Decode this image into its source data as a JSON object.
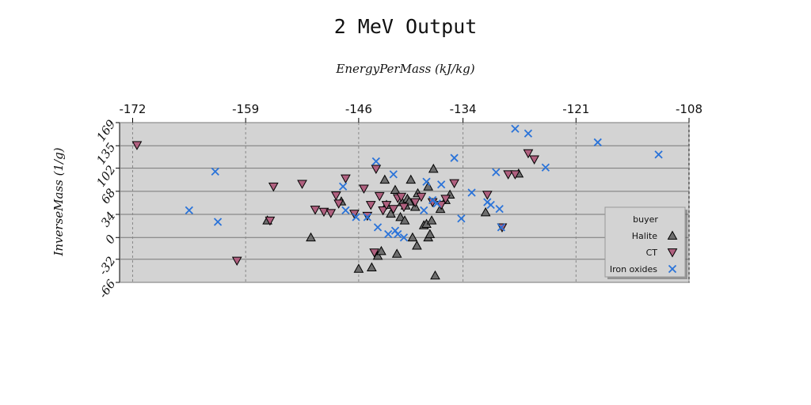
{
  "chart_data": {
    "type": "scatter",
    "title": "2 MeV Output",
    "xlabel": "EnergyPerMass (kJ/kg)",
    "ylabel": "InverseMass (1/g)",
    "xlim": [
      -173.5,
      -108
    ],
    "ylim": [
      -66,
      169
    ],
    "xticks": [
      -172,
      -159,
      -146,
      -134,
      -121,
      -108
    ],
    "yticks": [
      169,
      135,
      102,
      68,
      34,
      0,
      -32,
      -66
    ],
    "x_axis_position": "top",
    "grid": true,
    "legend": {
      "title": "buyer",
      "position": "lower-right"
    },
    "series": [
      {
        "name": "Halite",
        "marker": "triangle-up",
        "color": "#6e6e6e",
        "points": [
          [
            -156.5,
            25
          ],
          [
            -151.5,
            0
          ],
          [
            -148,
            53
          ],
          [
            -146,
            -46
          ],
          [
            -144.5,
            -44
          ],
          [
            -143.8,
            -27
          ],
          [
            -143.4,
            -20
          ],
          [
            -143,
            85
          ],
          [
            -142.8,
            48
          ],
          [
            -142.3,
            35
          ],
          [
            -141.8,
            70
          ],
          [
            -141.6,
            -24
          ],
          [
            -141.2,
            30
          ],
          [
            -141,
            52
          ],
          [
            -140.7,
            25
          ],
          [
            -140.6,
            47
          ],
          [
            -140.4,
            57
          ],
          [
            -140.2,
            53
          ],
          [
            -140,
            85
          ],
          [
            -139.8,
            0
          ],
          [
            -139.5,
            45
          ],
          [
            -139.3,
            -12
          ],
          [
            -139.2,
            65
          ],
          [
            -138.5,
            18
          ],
          [
            -138.2,
            20
          ],
          [
            -138,
            75
          ],
          [
            -138,
            0
          ],
          [
            -137.8,
            5
          ],
          [
            -137.6,
            25
          ],
          [
            -137.4,
            101
          ],
          [
            -137.2,
            -56
          ],
          [
            -136.6,
            42
          ],
          [
            -136,
            55
          ],
          [
            -135.5,
            63
          ],
          [
            -131.4,
            37
          ],
          [
            -127.6,
            94
          ]
        ]
      },
      {
        "name": "CT",
        "marker": "triangle-down",
        "color": "#b0607f",
        "points": [
          [
            -171.5,
            136
          ],
          [
            -160,
            -34
          ],
          [
            -156.2,
            25
          ],
          [
            -155.8,
            75
          ],
          [
            -152.5,
            79
          ],
          [
            -151,
            41
          ],
          [
            -150,
            38
          ],
          [
            -149.2,
            36
          ],
          [
            -148.6,
            62
          ],
          [
            -148.3,
            50
          ],
          [
            -147.5,
            87
          ],
          [
            -146.5,
            35
          ],
          [
            -145.4,
            72
          ],
          [
            -145,
            32
          ],
          [
            -144.6,
            48
          ],
          [
            -144.2,
            -22
          ],
          [
            -144,
            101
          ],
          [
            -143.6,
            61
          ],
          [
            -143.2,
            40
          ],
          [
            -142.8,
            48
          ],
          [
            -142,
            42
          ],
          [
            -141.5,
            58
          ],
          [
            -141.1,
            60
          ],
          [
            -140.8,
            45
          ],
          [
            -139.5,
            52
          ],
          [
            -138.8,
            60
          ],
          [
            -137.5,
            52
          ],
          [
            -136.5,
            48
          ],
          [
            -136,
            57
          ],
          [
            -135,
            80
          ],
          [
            -131.2,
            63
          ],
          [
            -129.5,
            15
          ],
          [
            -128.8,
            93
          ],
          [
            -128,
            93
          ],
          [
            -126.5,
            124
          ],
          [
            -125.8,
            115
          ]
        ]
      },
      {
        "name": "Iron oxides",
        "marker": "x",
        "color": "#2a73d9",
        "points": [
          [
            -165.5,
            40
          ],
          [
            -162.5,
            97
          ],
          [
            -162.2,
            23
          ],
          [
            -147.8,
            75
          ],
          [
            -147.5,
            40
          ],
          [
            -146.3,
            30
          ],
          [
            -145,
            30
          ],
          [
            -144,
            112
          ],
          [
            -143.8,
            15
          ],
          [
            -142.6,
            5
          ],
          [
            -142,
            93
          ],
          [
            -141.8,
            10
          ],
          [
            -141.5,
            5
          ],
          [
            -140.8,
            0
          ],
          [
            -138.5,
            40
          ],
          [
            -138.2,
            82
          ],
          [
            -137.5,
            55
          ],
          [
            -137,
            50
          ],
          [
            -136.5,
            78
          ],
          [
            -135,
            117
          ],
          [
            -134.2,
            28
          ],
          [
            -133,
            66
          ],
          [
            -131.2,
            52
          ],
          [
            -130.8,
            48
          ],
          [
            -130.2,
            96
          ],
          [
            -129.8,
            42
          ],
          [
            -129.6,
            15
          ],
          [
            -128,
            160
          ],
          [
            -126.5,
            153
          ],
          [
            -124.5,
            103
          ],
          [
            -118.5,
            140
          ],
          [
            -111.5,
            122
          ]
        ]
      }
    ]
  }
}
